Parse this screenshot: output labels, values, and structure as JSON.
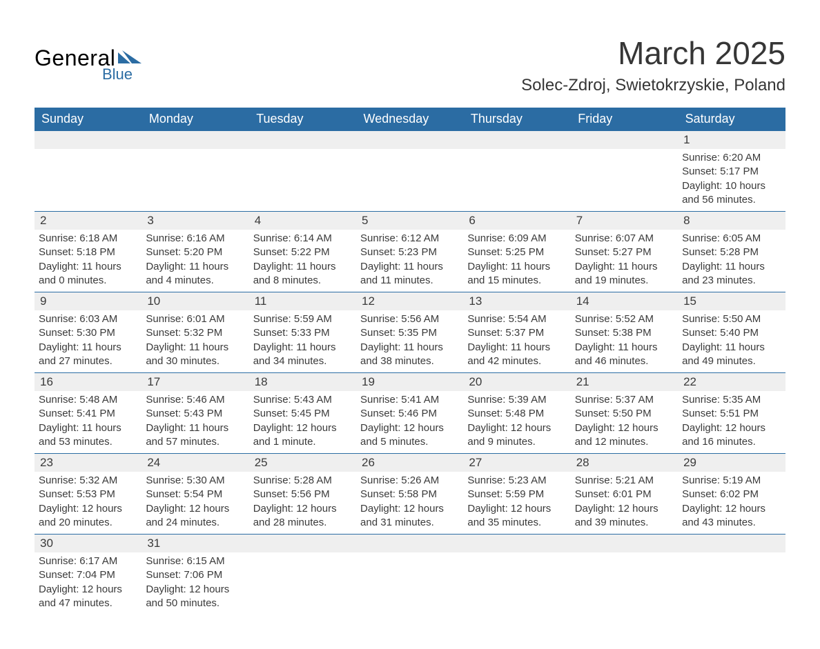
{
  "logo": {
    "text_main": "General",
    "text_sub": "Blue",
    "shape_color": "#2b6ca3"
  },
  "title": "March 2025",
  "location": "Solec-Zdroj, Swietokrzyskie, Poland",
  "colors": {
    "header_bg": "#2b6ca3",
    "header_text": "#ffffff",
    "daynum_bg": "#efefef",
    "text": "#3a3a3a",
    "border": "#2b6ca3",
    "page_bg": "#ffffff"
  },
  "typography": {
    "title_fontsize": 46,
    "location_fontsize": 24,
    "header_fontsize": 18,
    "daynum_fontsize": 17,
    "detail_fontsize": 15
  },
  "layout": {
    "columns": 7,
    "rows": 6
  },
  "day_headers": [
    "Sunday",
    "Monday",
    "Tuesday",
    "Wednesday",
    "Thursday",
    "Friday",
    "Saturday"
  ],
  "weeks": [
    [
      null,
      null,
      null,
      null,
      null,
      null,
      {
        "num": "1",
        "sunrise": "6:20 AM",
        "sunset": "5:17 PM",
        "daylight": "10 hours and 56 minutes."
      }
    ],
    [
      {
        "num": "2",
        "sunrise": "6:18 AM",
        "sunset": "5:18 PM",
        "daylight": "11 hours and 0 minutes."
      },
      {
        "num": "3",
        "sunrise": "6:16 AM",
        "sunset": "5:20 PM",
        "daylight": "11 hours and 4 minutes."
      },
      {
        "num": "4",
        "sunrise": "6:14 AM",
        "sunset": "5:22 PM",
        "daylight": "11 hours and 8 minutes."
      },
      {
        "num": "5",
        "sunrise": "6:12 AM",
        "sunset": "5:23 PM",
        "daylight": "11 hours and 11 minutes."
      },
      {
        "num": "6",
        "sunrise": "6:09 AM",
        "sunset": "5:25 PM",
        "daylight": "11 hours and 15 minutes."
      },
      {
        "num": "7",
        "sunrise": "6:07 AM",
        "sunset": "5:27 PM",
        "daylight": "11 hours and 19 minutes."
      },
      {
        "num": "8",
        "sunrise": "6:05 AM",
        "sunset": "5:28 PM",
        "daylight": "11 hours and 23 minutes."
      }
    ],
    [
      {
        "num": "9",
        "sunrise": "6:03 AM",
        "sunset": "5:30 PM",
        "daylight": "11 hours and 27 minutes."
      },
      {
        "num": "10",
        "sunrise": "6:01 AM",
        "sunset": "5:32 PM",
        "daylight": "11 hours and 30 minutes."
      },
      {
        "num": "11",
        "sunrise": "5:59 AM",
        "sunset": "5:33 PM",
        "daylight": "11 hours and 34 minutes."
      },
      {
        "num": "12",
        "sunrise": "5:56 AM",
        "sunset": "5:35 PM",
        "daylight": "11 hours and 38 minutes."
      },
      {
        "num": "13",
        "sunrise": "5:54 AM",
        "sunset": "5:37 PM",
        "daylight": "11 hours and 42 minutes."
      },
      {
        "num": "14",
        "sunrise": "5:52 AM",
        "sunset": "5:38 PM",
        "daylight": "11 hours and 46 minutes."
      },
      {
        "num": "15",
        "sunrise": "5:50 AM",
        "sunset": "5:40 PM",
        "daylight": "11 hours and 49 minutes."
      }
    ],
    [
      {
        "num": "16",
        "sunrise": "5:48 AM",
        "sunset": "5:41 PM",
        "daylight": "11 hours and 53 minutes."
      },
      {
        "num": "17",
        "sunrise": "5:46 AM",
        "sunset": "5:43 PM",
        "daylight": "11 hours and 57 minutes."
      },
      {
        "num": "18",
        "sunrise": "5:43 AM",
        "sunset": "5:45 PM",
        "daylight": "12 hours and 1 minute."
      },
      {
        "num": "19",
        "sunrise": "5:41 AM",
        "sunset": "5:46 PM",
        "daylight": "12 hours and 5 minutes."
      },
      {
        "num": "20",
        "sunrise": "5:39 AM",
        "sunset": "5:48 PM",
        "daylight": "12 hours and 9 minutes."
      },
      {
        "num": "21",
        "sunrise": "5:37 AM",
        "sunset": "5:50 PM",
        "daylight": "12 hours and 12 minutes."
      },
      {
        "num": "22",
        "sunrise": "5:35 AM",
        "sunset": "5:51 PM",
        "daylight": "12 hours and 16 minutes."
      }
    ],
    [
      {
        "num": "23",
        "sunrise": "5:32 AM",
        "sunset": "5:53 PM",
        "daylight": "12 hours and 20 minutes."
      },
      {
        "num": "24",
        "sunrise": "5:30 AM",
        "sunset": "5:54 PM",
        "daylight": "12 hours and 24 minutes."
      },
      {
        "num": "25",
        "sunrise": "5:28 AM",
        "sunset": "5:56 PM",
        "daylight": "12 hours and 28 minutes."
      },
      {
        "num": "26",
        "sunrise": "5:26 AM",
        "sunset": "5:58 PM",
        "daylight": "12 hours and 31 minutes."
      },
      {
        "num": "27",
        "sunrise": "5:23 AM",
        "sunset": "5:59 PM",
        "daylight": "12 hours and 35 minutes."
      },
      {
        "num": "28",
        "sunrise": "5:21 AM",
        "sunset": "6:01 PM",
        "daylight": "12 hours and 39 minutes."
      },
      {
        "num": "29",
        "sunrise": "5:19 AM",
        "sunset": "6:02 PM",
        "daylight": "12 hours and 43 minutes."
      }
    ],
    [
      {
        "num": "30",
        "sunrise": "6:17 AM",
        "sunset": "7:04 PM",
        "daylight": "12 hours and 47 minutes."
      },
      {
        "num": "31",
        "sunrise": "6:15 AM",
        "sunset": "7:06 PM",
        "daylight": "12 hours and 50 minutes."
      },
      null,
      null,
      null,
      null,
      null
    ]
  ],
  "labels": {
    "sunrise": "Sunrise:",
    "sunset": "Sunset:",
    "daylight": "Daylight:"
  }
}
